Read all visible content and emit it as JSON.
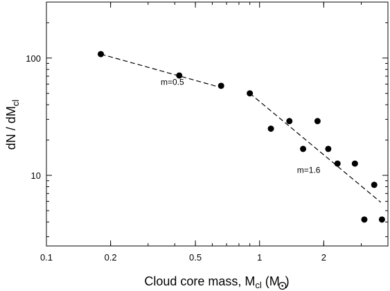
{
  "chart_data": {
    "type": "scatter",
    "xscale": "log",
    "yscale": "log",
    "xlim": [
      0.1,
      4
    ],
    "ylim": [
      2.5,
      300
    ],
    "grid": false,
    "xlabel": {
      "main": "Cloud core mass, M",
      "sub": "cl",
      "paren_open": " (M",
      "paren_close": ")"
    },
    "ylabel": {
      "main": "dN / dM",
      "sub": "cl"
    },
    "x_ticks": [
      {
        "value": 0.1,
        "label": "0.1"
      },
      {
        "value": 0.2,
        "label": "0.2"
      },
      {
        "value": 0.5,
        "label": "0.5"
      },
      {
        "value": 1,
        "label": "1"
      },
      {
        "value": 2,
        "label": "2"
      }
    ],
    "y_ticks": [
      {
        "value": 10,
        "label": "10"
      },
      {
        "value": 100,
        "label": "100"
      }
    ],
    "points": [
      {
        "x": 0.18,
        "y": 108
      },
      {
        "x": 0.42,
        "y": 71
      },
      {
        "x": 0.66,
        "y": 58
      },
      {
        "x": 0.9,
        "y": 50
      },
      {
        "x": 1.13,
        "y": 25
      },
      {
        "x": 1.38,
        "y": 29
      },
      {
        "x": 1.6,
        "y": 16.8
      },
      {
        "x": 1.87,
        "y": 29
      },
      {
        "x": 2.1,
        "y": 16.8
      },
      {
        "x": 2.32,
        "y": 12.6
      },
      {
        "x": 2.8,
        "y": 12.6
      },
      {
        "x": 3.1,
        "y": 4.2
      },
      {
        "x": 3.45,
        "y": 8.3
      },
      {
        "x": 3.75,
        "y": 4.2
      }
    ],
    "fits": [
      {
        "label": "m=0.5",
        "slope": -0.5,
        "x_start": 0.18,
        "y_start": 108,
        "x_end": 0.66,
        "y_end": 56
      },
      {
        "label": "m=1.6",
        "slope": -1.6,
        "x_start": 0.9,
        "y_start": 50,
        "x_end": 3.7,
        "y_end": 5.9
      }
    ],
    "annotations": [
      {
        "text": "m=0.5",
        "x": 0.39,
        "y": 59
      },
      {
        "text": "m=1.6",
        "x": 1.7,
        "y": 10.5
      }
    ]
  }
}
